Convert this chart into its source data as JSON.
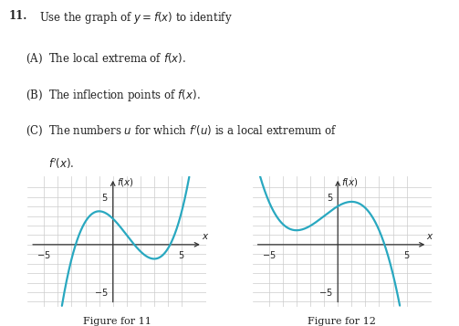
{
  "background_color": "#ffffff",
  "text_color": "#222222",
  "curve_color": "#29a8c0",
  "curve_linewidth": 1.6,
  "grid_color": "#cccccc",
  "axis_color": "#333333",
  "fig1_label": "Figure for 11",
  "fig2_label": "Figure for 12",
  "xlim": [
    -6.2,
    6.8
  ],
  "ylim": [
    -6.5,
    7.2
  ],
  "fig_width": 5.03,
  "fig_height": 3.57,
  "text_fontsize": 8.5,
  "tick_fontsize": 7.0,
  "label_fontsize": 7.5,
  "figcap_fontsize": 8.0,
  "curve1_a": 0.15625,
  "curve1_b": -0.46875,
  "curve1_c": -1.40625,
  "curve1_d": 2.72,
  "curve2_a": -0.109375,
  "curve2_b": 0.1640625,
  "curve2_c": 1.23046875,
  "curve2_d": 3.606445313
}
